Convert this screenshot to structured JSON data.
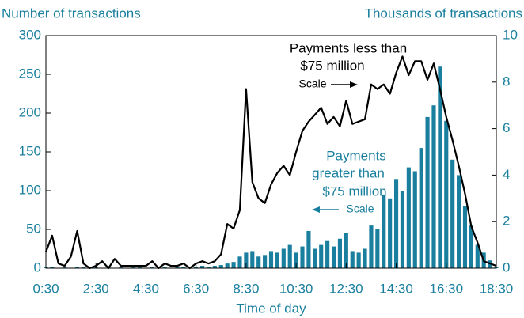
{
  "chart_data": {
    "type": "bar-line",
    "y_label": "Number of transactions",
    "y2_label": "Thousands of transactions",
    "x_label": "Time of day",
    "annotations": [
      "Payments less than",
      "$75 million",
      "Scale",
      "Payments",
      "greater than",
      "$75 million",
      "Scale"
    ],
    "x": [
      0.5,
      0.75,
      1,
      1.25,
      1.5,
      1.75,
      2,
      2.25,
      2.5,
      2.75,
      3,
      3.25,
      3.5,
      3.75,
      4,
      4.25,
      4.5,
      4.75,
      5,
      5.25,
      5.5,
      5.75,
      6,
      6.25,
      6.5,
      6.75,
      7,
      7.25,
      7.5,
      7.75,
      8,
      8.25,
      8.5,
      8.75,
      9,
      9.25,
      9.5,
      9.75,
      10,
      10.25,
      10.5,
      10.75,
      11,
      11.25,
      11.5,
      11.75,
      12,
      12.25,
      12.5,
      12.75,
      13,
      13.25,
      13.5,
      13.75,
      14,
      14.25,
      14.5,
      14.75,
      15,
      15.25,
      15.5,
      15.75,
      16,
      16.25,
      16.5,
      16.75,
      17,
      17.25,
      17.5,
      17.75,
      18,
      18.25,
      18.5
    ],
    "series": [
      {
        "name": "Payments greater than $75 million",
        "color": "#1a7f9e",
        "axis": "y",
        "values": [
          1,
          2,
          0,
          1,
          0,
          2,
          1,
          0,
          1,
          0,
          1,
          0,
          1,
          0,
          1,
          2,
          0,
          1,
          0,
          1,
          0,
          1,
          2,
          1,
          2,
          3,
          2,
          3,
          4,
          6,
          8,
          15,
          20,
          22,
          15,
          17,
          22,
          20,
          25,
          30,
          20,
          28,
          48,
          25,
          30,
          35,
          28,
          38,
          45,
          22,
          20,
          25,
          55,
          50,
          95,
          90,
          115,
          100,
          130,
          125,
          155,
          195,
          210,
          260,
          190,
          140,
          120,
          80,
          55,
          30,
          20,
          10,
          2
        ]
      },
      {
        "name": "Payments less than $75 million",
        "color": "#000000",
        "axis": "y2",
        "values": [
          0.7,
          1.4,
          0.2,
          0.1,
          0.5,
          1.6,
          0.2,
          0,
          0.1,
          0.3,
          0,
          0.4,
          0.1,
          0.1,
          0.1,
          0.1,
          0.1,
          0.3,
          0,
          0.2,
          0.1,
          0.1,
          0.2,
          0,
          0.2,
          0.3,
          0.2,
          0.3,
          0.6,
          1.9,
          1.7,
          2.5,
          7.7,
          3.7,
          3,
          2.8,
          3.6,
          4.1,
          4.4,
          4,
          5,
          5.9,
          6.3,
          6.6,
          6.9,
          6.2,
          6.5,
          6.1,
          7.2,
          6.2,
          6.3,
          6.4,
          7.9,
          7.7,
          7.9,
          7.5,
          8.4,
          9.1,
          8.3,
          8.9,
          8.9,
          8.1,
          8.8,
          7.7,
          6.5,
          5.5,
          4.4,
          3.2,
          1.8,
          1.1,
          0.3,
          0.2,
          0.1
        ]
      }
    ],
    "xlim": [
      0.5,
      18.5
    ],
    "xticks": [
      {
        "value": 0.5,
        "label": "0:30"
      },
      {
        "value": 2.5,
        "label": "2:30"
      },
      {
        "value": 4.5,
        "label": "4:30"
      },
      {
        "value": 6.5,
        "label": "6:30"
      },
      {
        "value": 8.5,
        "label": "8:30"
      },
      {
        "value": 10.5,
        "label": "10:30"
      },
      {
        "value": 12.5,
        "label": "12:30"
      },
      {
        "value": 14.5,
        "label": "14:30"
      },
      {
        "value": 16.5,
        "label": "16:30"
      },
      {
        "value": 18.5,
        "label": "18:30"
      }
    ],
    "ylim": [
      0,
      300
    ],
    "yticks": [
      0,
      50,
      100,
      150,
      200,
      250,
      300
    ],
    "y2lim": [
      0,
      10
    ],
    "y2ticks": [
      0,
      2,
      4,
      6,
      8,
      10
    ],
    "axis_color": "#1a7f9e"
  }
}
